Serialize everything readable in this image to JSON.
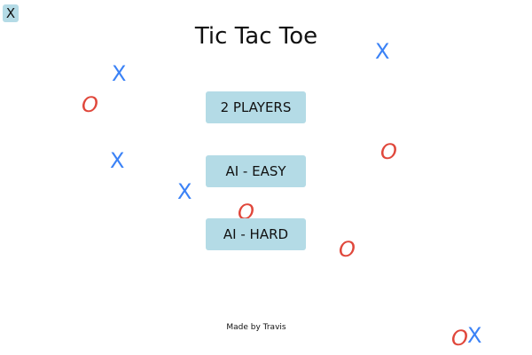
{
  "close_button": {
    "label": "X"
  },
  "title": "Tic Tac Toe",
  "menu": {
    "two_players": "2 PLAYERS",
    "ai_easy": "AI - EASY",
    "ai_hard": "AI - HARD"
  },
  "credit": "Made by Travis",
  "background_marks": {
    "x_symbol": "X",
    "o_symbol": "O",
    "x_color": "#3b82f6",
    "o_color": "#e0473b"
  }
}
